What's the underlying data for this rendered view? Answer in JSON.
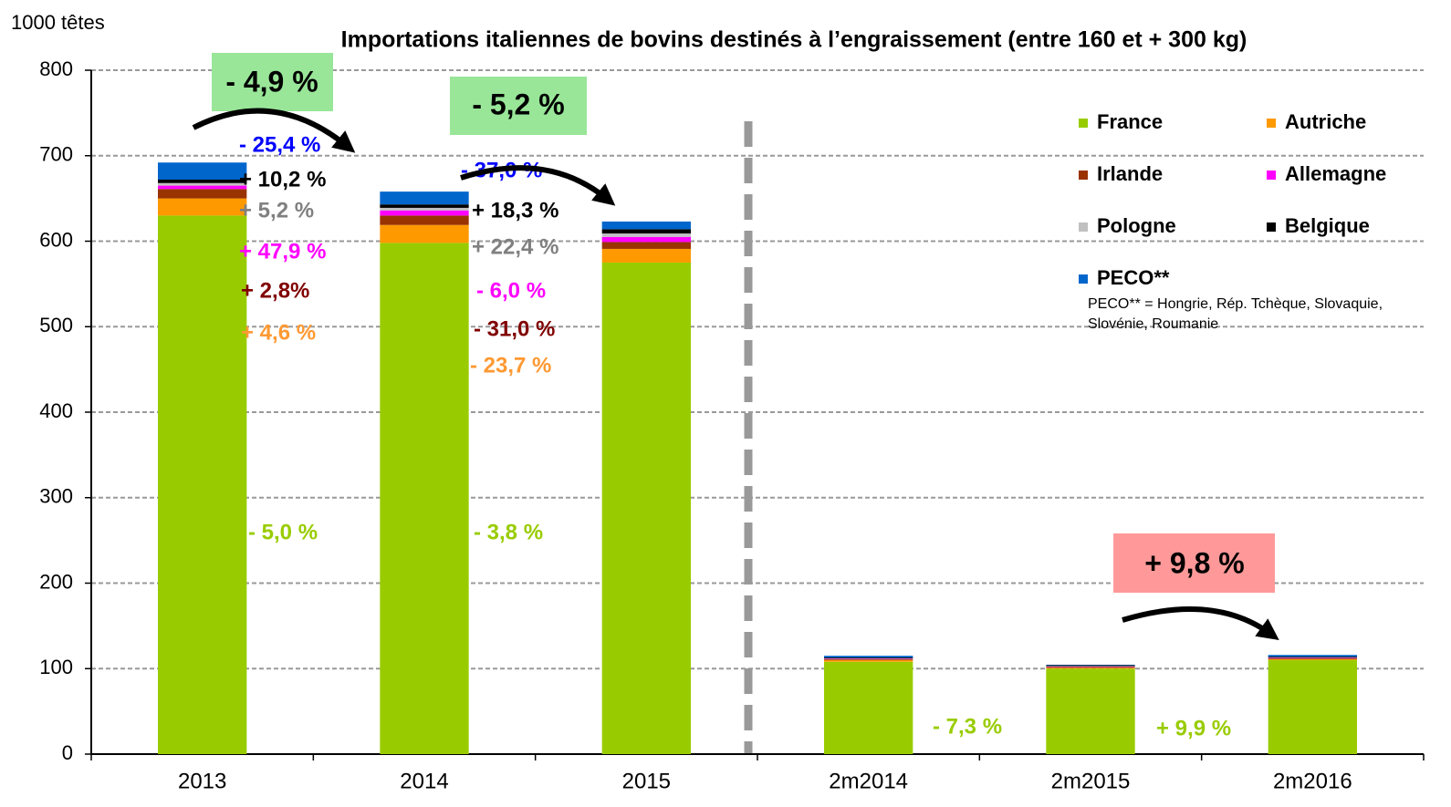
{
  "chart_data": {
    "type": "stacked-bar",
    "title": "Importations italiennes de bovins destinés à l’engraissement (entre 160 et + 300 kg)",
    "y_label": "1000 têtes",
    "categories": [
      "2013",
      "2014",
      "2015",
      "2m2014",
      "2m2015",
      "2m2016"
    ],
    "series": [
      {
        "name": "France",
        "color": "#99cc00",
        "values": [
          630,
          598,
          575,
          108,
          100,
          110
        ]
      },
      {
        "name": "Autriche",
        "color": "#ff9900",
        "values": [
          20,
          21,
          16,
          2,
          1,
          1
        ]
      },
      {
        "name": "Irlande",
        "color": "#993300",
        "values": [
          11,
          11,
          8,
          1,
          1,
          1
        ]
      },
      {
        "name": "Allemagne",
        "color": "#ff00ff",
        "values": [
          4,
          6,
          6,
          0.5,
          0.5,
          0.5
        ]
      },
      {
        "name": "Pologne",
        "color": "#c0c0c0",
        "values": [
          3,
          3,
          4,
          0.5,
          0.5,
          0.5
        ]
      },
      {
        "name": "Belgique",
        "color": "#000000",
        "values": [
          4,
          4,
          5,
          1,
          1,
          1
        ]
      },
      {
        "name": "PECO**",
        "color": "#0066cc",
        "values": [
          20,
          15,
          9,
          2,
          0.5,
          2
        ]
      }
    ],
    "legend_note": [
      "PECO** = Hongrie, Rép. Tchèque, Slovaquie,",
      "Slovénie, Roumanie"
    ],
    "ylim": [
      0,
      800
    ],
    "yticks": [
      0,
      100,
      200,
      300,
      400,
      500,
      600,
      700,
      800
    ],
    "grid": true,
    "annotations": [
      {
        "text": "- 4,9 %",
        "color": "#000000",
        "box": "#99e699"
      },
      {
        "text": "- 5,2 %",
        "color": "#000000",
        "box": "#99e699"
      },
      {
        "text": "+ 9,8 %",
        "color": "#000000",
        "box": "#ff9999"
      },
      {
        "text": "- 25,4 %",
        "color": "#0000ff"
      },
      {
        "text": "+ 10,2 %",
        "color": "#000000"
      },
      {
        "text": "+ 5,2 %",
        "color": "#808080"
      },
      {
        "text": "+ 47,9 %",
        "color": "#ff00ff"
      },
      {
        "text": "+ 2,8%",
        "color": "#800000"
      },
      {
        "text": "+ 4,6 %",
        "color": "#ff9933"
      },
      {
        "text": "- 5,0 %",
        "color": "#99cc00"
      },
      {
        "text": "- 37,0 %",
        "color": "#0000ff"
      },
      {
        "text": "+ 18,3 %",
        "color": "#000000"
      },
      {
        "text": "+ 22,4 %",
        "color": "#808080"
      },
      {
        "text": "- 6,0 %",
        "color": "#ff00ff"
      },
      {
        "text": "- 31,0 %",
        "color": "#800000"
      },
      {
        "text": "- 23,7 %",
        "color": "#ff9933"
      },
      {
        "text": "- 3,8 %",
        "color": "#99cc00"
      },
      {
        "text": "- 7,3 %",
        "color": "#99cc00"
      },
      {
        "text": "+ 9,9 %",
        "color": "#99cc00"
      }
    ]
  }
}
